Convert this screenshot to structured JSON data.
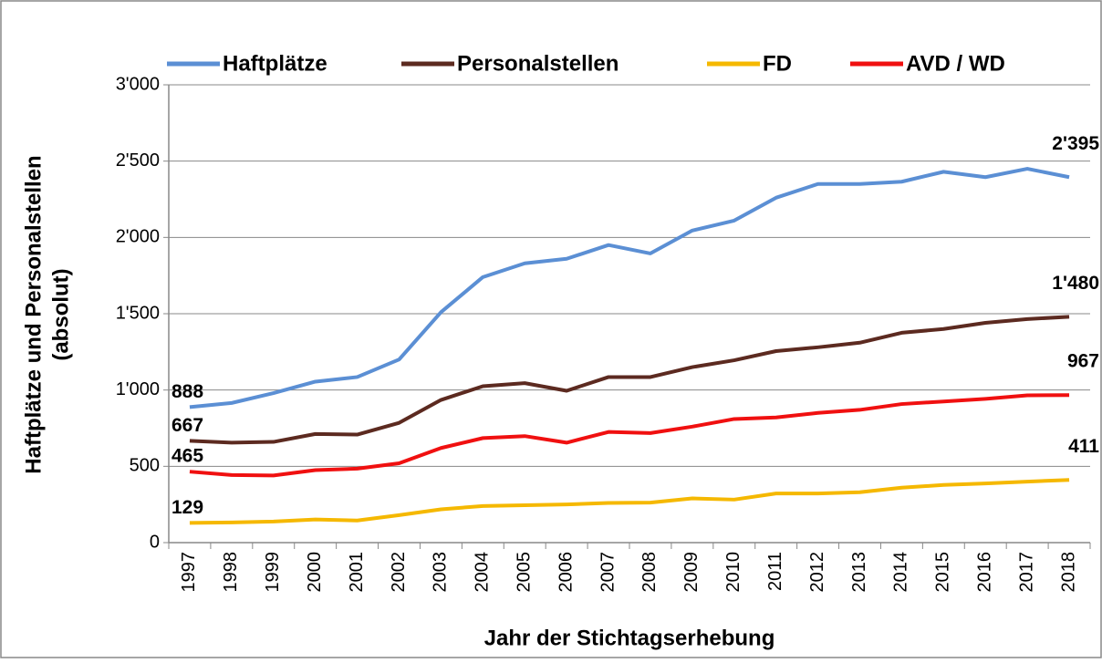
{
  "chart_data": {
    "type": "line",
    "x_label": "Jahr der Stichtagserhebung",
    "y_label": [
      "Haftplätze und Personalstellen",
      "(absolut)"
    ],
    "categories": [
      "1997",
      "1998",
      "1999",
      "2000",
      "2001",
      "2002",
      "2003",
      "2004",
      "2005",
      "2006",
      "2007",
      "2008",
      "2009",
      "2010",
      "2011",
      "2012",
      "2013",
      "2014",
      "2015",
      "2016",
      "2017",
      "2018"
    ],
    "series": [
      {
        "name": "Haftplätze",
        "color": "#5b8fd4",
        "values": [
          888,
          915,
          980,
          1055,
          1085,
          1200,
          1510,
          1740,
          1830,
          1860,
          1950,
          1895,
          2045,
          2110,
          2260,
          2350,
          2350,
          2365,
          2430,
          2395,
          2450,
          2395
        ],
        "value_labels": [
          "888",
          null,
          null,
          null,
          null,
          null,
          null,
          null,
          null,
          null,
          null,
          null,
          null,
          null,
          null,
          null,
          null,
          null,
          null,
          null,
          null,
          "2'395"
        ]
      },
      {
        "name": "Personalstellen",
        "color": "#5c2a20",
        "values": [
          667,
          655,
          660,
          712,
          708,
          785,
          935,
          1025,
          1045,
          995,
          1085,
          1085,
          1150,
          1195,
          1255,
          1280,
          1310,
          1375,
          1400,
          1440,
          1465,
          1480
        ],
        "value_labels": [
          "667",
          null,
          null,
          null,
          null,
          null,
          null,
          null,
          null,
          null,
          null,
          null,
          null,
          null,
          null,
          null,
          null,
          null,
          null,
          null,
          null,
          "1'480"
        ]
      },
      {
        "name": "FD",
        "color": "#f5b800",
        "values": [
          129,
          132,
          138,
          152,
          145,
          180,
          218,
          240,
          245,
          250,
          260,
          262,
          290,
          282,
          322,
          322,
          330,
          360,
          378,
          388,
          400,
          411
        ],
        "value_labels": [
          "129",
          null,
          null,
          null,
          null,
          null,
          null,
          null,
          null,
          null,
          null,
          null,
          null,
          null,
          null,
          null,
          null,
          null,
          null,
          null,
          null,
          "411"
        ]
      },
      {
        "name": "AVD / WD",
        "color": "#f01010",
        "values": [
          465,
          443,
          440,
          475,
          485,
          520,
          620,
          685,
          698,
          655,
          725,
          718,
          760,
          810,
          820,
          850,
          870,
          908,
          925,
          942,
          965,
          967
        ],
        "value_labels": [
          "465",
          null,
          null,
          null,
          null,
          null,
          null,
          null,
          null,
          null,
          null,
          null,
          null,
          null,
          null,
          null,
          null,
          null,
          null,
          null,
          null,
          "967"
        ]
      }
    ],
    "ylim": [
      0,
      3000
    ],
    "yticks": [
      0,
      500,
      {
        "value": 1000,
        "label": "1'000"
      },
      {
        "value": 1500,
        "label": "1'500"
      },
      {
        "value": 2000,
        "label": "2'000"
      },
      {
        "value": 2500,
        "label": "2'500"
      },
      {
        "value": 3000,
        "label": "3'000"
      }
    ],
    "grid": true,
    "legend": "top"
  }
}
